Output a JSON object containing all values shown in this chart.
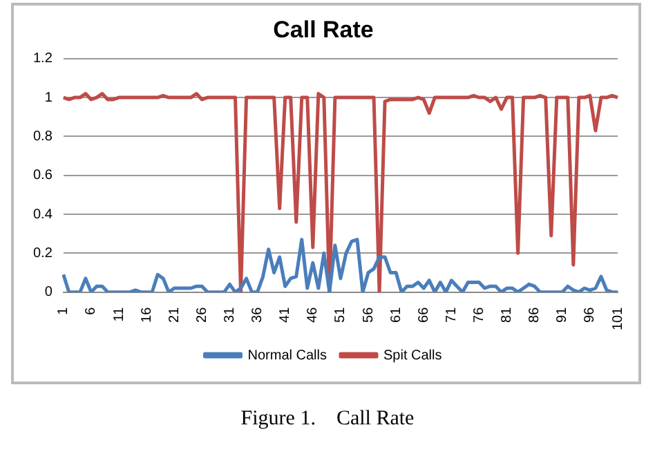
{
  "chart_data": {
    "type": "line",
    "title": "Call Rate",
    "categories": [
      "1",
      null,
      null,
      null,
      null,
      "6",
      null,
      null,
      null,
      null,
      "11",
      null,
      null,
      null,
      null,
      "16",
      null,
      null,
      null,
      null,
      "21",
      null,
      null,
      null,
      null,
      "26",
      null,
      null,
      null,
      null,
      "31",
      null,
      null,
      null,
      null,
      "36",
      null,
      null,
      null,
      null,
      "41",
      null,
      null,
      null,
      null,
      "46",
      null,
      null,
      null,
      null,
      "51",
      null,
      null,
      null,
      null,
      "56",
      null,
      null,
      null,
      null,
      "61",
      null,
      null,
      null,
      null,
      "66",
      null,
      null,
      null,
      null,
      "71",
      null,
      null,
      null,
      null,
      "76",
      null,
      null,
      null,
      null,
      "81",
      null,
      null,
      null,
      null,
      "86",
      null,
      null,
      null,
      null,
      "91",
      null,
      null,
      null,
      null,
      "96",
      null,
      null,
      null,
      null,
      "101"
    ],
    "series": [
      {
        "name": "Normal Calls",
        "color": "#4a7ebb",
        "values": [
          0.09,
          0,
          0,
          0,
          0.07,
          0,
          0.03,
          0.03,
          0,
          0,
          0,
          0,
          0,
          0.01,
          0,
          0,
          0,
          0.09,
          0.07,
          0,
          0.02,
          0.02,
          0.02,
          0.02,
          0.03,
          0.03,
          0,
          0,
          0,
          0,
          0.04,
          0,
          0.02,
          0.07,
          0,
          0,
          0.08,
          0.22,
          0.1,
          0.18,
          0.03,
          0.07,
          0.08,
          0.27,
          0.02,
          0.15,
          0.02,
          0.2,
          0,
          0.24,
          0.07,
          0.2,
          0.26,
          0.27,
          0,
          0.1,
          0.12,
          0.18,
          0.18,
          0.1,
          0.1,
          0,
          0.03,
          0.03,
          0.05,
          0.02,
          0.06,
          0,
          0.05,
          0,
          0.06,
          0.03,
          0,
          0.05,
          0.05,
          0.05,
          0.02,
          0.03,
          0.03,
          0,
          0.02,
          0.02,
          0,
          0.02,
          0.04,
          0.03,
          0,
          0,
          0,
          0,
          0,
          0.03,
          0.01,
          0,
          0.02,
          0.01,
          0.02,
          0.08,
          0.01,
          0,
          0
        ]
      },
      {
        "name": "Spit Calls",
        "color": "#be4b48",
        "values": [
          1,
          0.99,
          1,
          1,
          1.02,
          0.99,
          1,
          1.02,
          0.99,
          0.99,
          1,
          1,
          1,
          1,
          1,
          1,
          1,
          1,
          1.01,
          1,
          1,
          1,
          1,
          1,
          1.02,
          0.99,
          1,
          1,
          1,
          1,
          1,
          1,
          0,
          1,
          1,
          1,
          1,
          1,
          1,
          0.43,
          1,
          1,
          0.36,
          1,
          1,
          0.23,
          1.02,
          1,
          0,
          1,
          1,
          1,
          1,
          1,
          1,
          1,
          1,
          0,
          0.98,
          0.99,
          0.99,
          0.99,
          0.99,
          0.99,
          1,
          0.99,
          0.92,
          1,
          1,
          1,
          1,
          1,
          1,
          1,
          1.01,
          1,
          1,
          0.98,
          1,
          0.94,
          1,
          1,
          0.2,
          1,
          1,
          1,
          1.01,
          1,
          0.29,
          1,
          1,
          1,
          0.14,
          1,
          1,
          1.01,
          0.83,
          1,
          1,
          1.01,
          1
        ]
      }
    ],
    "ylim": [
      0,
      1.2
    ],
    "yticks": [
      0,
      0.2,
      0.4,
      0.6,
      0.8,
      1,
      1.2
    ],
    "grid": "y",
    "legend": "bottom",
    "marker": "none",
    "line_style": "solid",
    "annotations": [
      "Figure 1.    Call Rate"
    ]
  }
}
